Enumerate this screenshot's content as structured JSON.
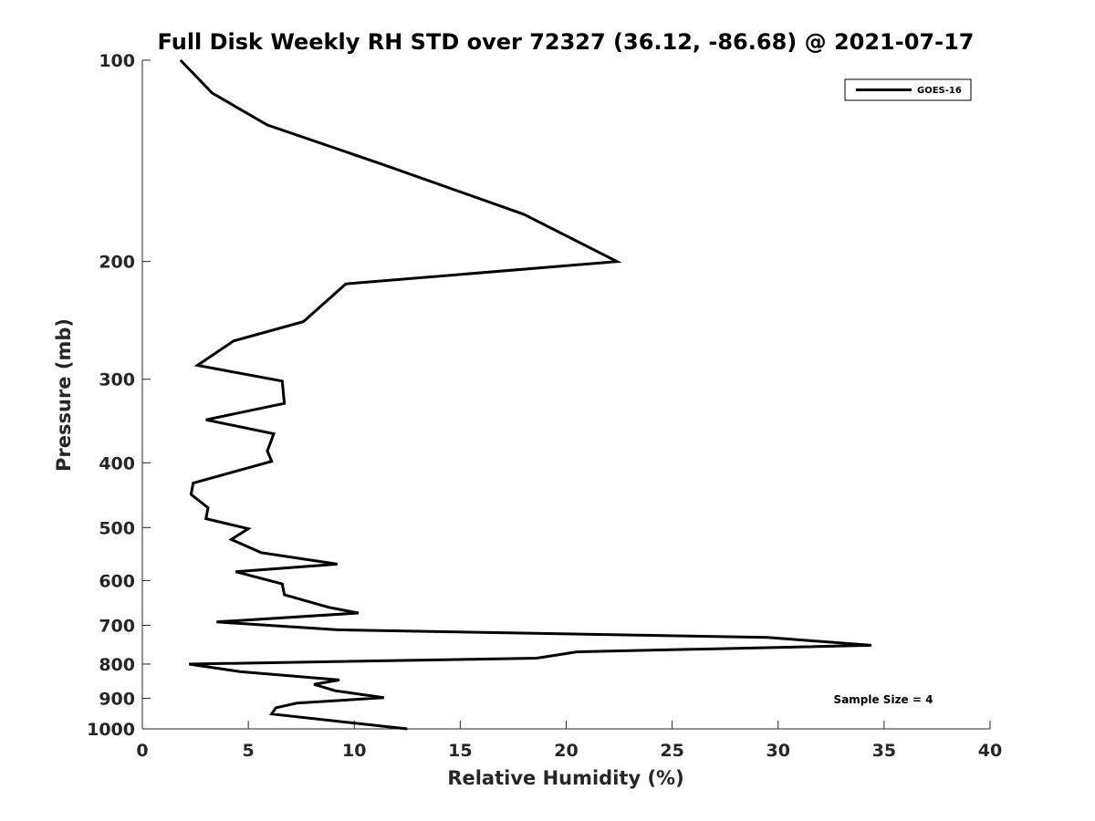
{
  "chart_data": {
    "type": "line",
    "title": "Full Disk Weekly RH STD over 72327 (36.12, -86.68) @ 2021-07-17",
    "xlabel": "Relative Humidity (%)",
    "ylabel": "Pressure (mb)",
    "xlim": [
      0,
      40
    ],
    "ylim": [
      100,
      1000
    ],
    "y_scale": "log",
    "y_reversed": true,
    "grid": false,
    "legend_position": "top-right",
    "x_ticks": [
      "0",
      "5",
      "10",
      "15",
      "20",
      "25",
      "30",
      "35",
      "40"
    ],
    "y_ticks": [
      "100",
      "200",
      "300",
      "400",
      "500",
      "600",
      "700",
      "800",
      "900",
      "1000"
    ],
    "series": [
      {
        "name": "GOES-16",
        "color": "#000000",
        "x": [
          1.8,
          3.3,
          5.9,
          11.3,
          18.0,
          22.4,
          9.6,
          7.6,
          4.3,
          2.6,
          6.6,
          6.7,
          3.0,
          6.2,
          5.9,
          6.1,
          2.4,
          2.3,
          3.1,
          3.0,
          5.0,
          4.2,
          5.6,
          9.2,
          4.4,
          6.6,
          6.7,
          8.8,
          10.2,
          3.5,
          9.2,
          29.5,
          34.4,
          20.5,
          18.6,
          2.2,
          4.6,
          9.3,
          8.1,
          9.1,
          11.4,
          7.3,
          6.3,
          6.1,
          12.5
        ],
        "y": [
          100,
          112,
          125,
          143,
          170,
          200,
          216,
          246,
          263,
          286,
          302,
          326,
          345,
          362,
          384,
          398,
          429,
          446,
          467,
          485,
          502,
          521,
          545,
          567,
          582,
          607,
          630,
          658,
          671,
          692,
          711,
          730,
          750,
          767,
          784,
          800,
          821,
          845,
          858,
          877,
          898,
          915,
          930,
          950,
          1000
        ]
      }
    ],
    "annotations": [
      "Sample Size = 4"
    ]
  }
}
